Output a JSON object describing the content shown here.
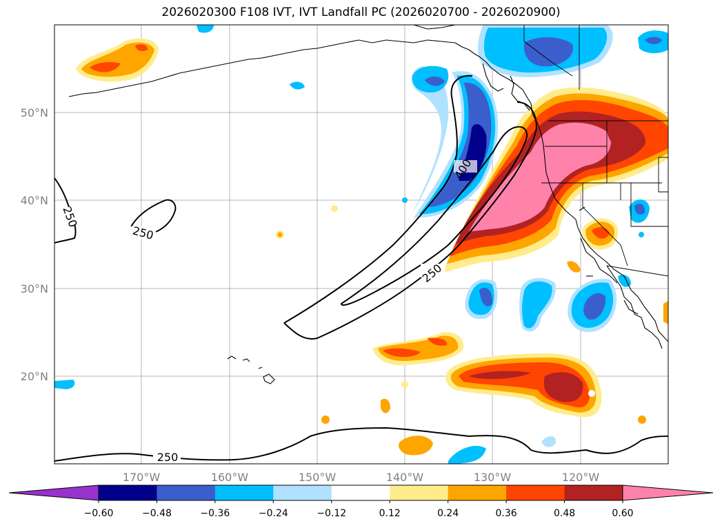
{
  "title": "2026020300 F108 IVT, IVT Landfall PC (2026020700 - 2026020900)",
  "map": {
    "lon_labels": [
      "170°W",
      "160°W",
      "150°W",
      "140°W",
      "130°W",
      "120°W"
    ],
    "lat_labels": [
      "50°N",
      "40°N",
      "30°N",
      "20°N"
    ],
    "contour_labels": [
      "250",
      "250",
      "400",
      "250",
      "250"
    ],
    "features": [
      "coastlines",
      "state-borders",
      "gridlines",
      "ivt-contours-250-400",
      "pc-filled-shading"
    ]
  },
  "colorbar": {
    "ticks": [
      "−0.60",
      "−0.48",
      "−0.36",
      "−0.24",
      "−0.12",
      "0.12",
      "0.24",
      "0.36",
      "0.48",
      "0.60"
    ],
    "colors": [
      "#9932cc",
      "#00008b",
      "#3a5fcd",
      "#00bfff",
      "#b0e2ff",
      "#ffffff",
      "#ffec8b",
      "#ffa500",
      "#ff4500",
      "#b22222",
      "#ff82ab"
    ]
  }
}
